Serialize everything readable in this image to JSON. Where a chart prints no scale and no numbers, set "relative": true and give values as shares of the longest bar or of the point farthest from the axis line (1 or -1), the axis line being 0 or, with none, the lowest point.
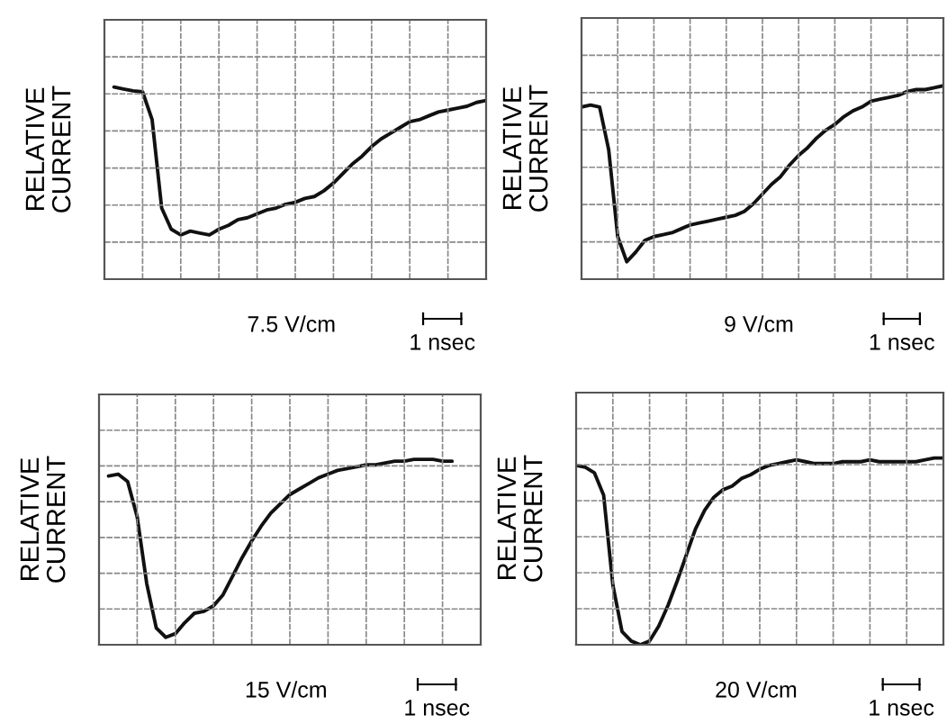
{
  "chart_data": [
    {
      "type": "line",
      "relative": true,
      "grid": true,
      "legend": false,
      "ylabel": "RELATIVE\nCURRENT",
      "xlabel": "7.5 V/cm",
      "annotations": [
        "1 nsec"
      ],
      "categories": [
        null,
        null,
        null,
        null,
        null,
        null,
        null,
        null,
        null,
        null,
        null,
        null,
        null,
        null,
        null,
        null,
        null,
        null,
        null,
        null,
        null,
        null,
        null,
        null,
        null,
        null,
        null,
        null,
        null,
        null,
        null,
        null,
        null,
        null,
        null,
        null,
        null,
        null,
        null,
        null,
        null
      ],
      "series": [
        {
          "color": "#111111",
          "values": [
            null,
            1.0,
            0.99,
            0.98,
            0.975,
            0.83,
            0.37,
            0.26,
            0.23,
            0.25,
            0.24,
            0.23,
            0.26,
            0.28,
            0.31,
            0.32,
            0.34,
            0.36,
            0.37,
            0.39,
            0.4,
            0.42,
            0.43,
            0.46,
            0.5,
            0.55,
            0.6,
            0.64,
            0.69,
            0.73,
            0.76,
            0.79,
            0.82,
            0.83,
            0.85,
            0.87,
            0.88,
            0.89,
            0.9,
            0.92,
            0.93
          ]
        }
      ]
    },
    {
      "type": "line",
      "relative": true,
      "grid": true,
      "legend": false,
      "ylabel": "RELATIVE\nCURRENT",
      "xlabel": "9 V/cm",
      "annotations": [
        "1 nsec"
      ],
      "categories": [
        null,
        null,
        null,
        null,
        null,
        null,
        null,
        null,
        null,
        null,
        null,
        null,
        null,
        null,
        null,
        null,
        null,
        null,
        null,
        null,
        null,
        null,
        null,
        null,
        null,
        null,
        null,
        null,
        null,
        null,
        null,
        null,
        null,
        null,
        null,
        null,
        null,
        null,
        null,
        null,
        null
      ],
      "series": [
        {
          "color": "#111111",
          "values": [
            0.89,
            0.9,
            0.89,
            0.67,
            0.22,
            0.09,
            0.14,
            0.2,
            0.22,
            0.23,
            0.24,
            0.26,
            0.28,
            0.29,
            0.3,
            0.31,
            0.32,
            0.33,
            0.35,
            0.39,
            0.44,
            0.49,
            0.53,
            0.59,
            0.64,
            0.68,
            0.73,
            0.77,
            0.8,
            0.84,
            0.87,
            0.89,
            0.92,
            0.93,
            0.94,
            0.95,
            0.97,
            0.98,
            0.98,
            0.99,
            1.0
          ]
        }
      ]
    },
    {
      "type": "line",
      "relative": true,
      "grid": true,
      "legend": false,
      "ylabel": "RELATIVE\nCURRENT",
      "xlabel": "15 V/cm",
      "annotations": [
        "1 nsec"
      ],
      "categories": [
        null,
        null,
        null,
        null,
        null,
        null,
        null,
        null,
        null,
        null,
        null,
        null,
        null,
        null,
        null,
        null,
        null,
        null,
        null,
        null,
        null,
        null,
        null,
        null,
        null,
        null,
        null,
        null,
        null,
        null,
        null,
        null,
        null,
        null,
        null,
        null,
        null,
        null,
        null,
        null,
        null
      ],
      "series": [
        {
          "color": "#111111",
          "values": [
            null,
            0.91,
            0.92,
            0.88,
            0.69,
            0.33,
            0.09,
            0.04,
            0.06,
            0.12,
            0.17,
            0.18,
            0.21,
            0.27,
            0.37,
            0.47,
            0.56,
            0.64,
            0.71,
            0.76,
            0.81,
            0.84,
            0.87,
            0.9,
            0.92,
            0.94,
            0.95,
            0.96,
            0.97,
            0.97,
            0.98,
            0.99,
            0.99,
            1.0,
            1.0,
            1.0,
            0.99,
            0.99,
            null,
            null,
            null
          ]
        }
      ]
    },
    {
      "type": "line",
      "relative": true,
      "grid": true,
      "legend": false,
      "ylabel": "RELATIVE\nCURRENT",
      "xlabel": "20 V/cm",
      "annotations": [
        "1 nsec"
      ],
      "categories": [
        null,
        null,
        null,
        null,
        null,
        null,
        null,
        null,
        null,
        null,
        null,
        null,
        null,
        null,
        null,
        null,
        null,
        null,
        null,
        null,
        null,
        null,
        null,
        null,
        null,
        null,
        null,
        null,
        null,
        null,
        null,
        null,
        null,
        null,
        null,
        null,
        null,
        null,
        null,
        null,
        null
      ],
      "series": [
        {
          "color": "#111111",
          "values": [
            0.96,
            0.95,
            0.92,
            0.8,
            0.32,
            0.07,
            0.02,
            0.0,
            0.02,
            0.1,
            0.21,
            0.34,
            0.48,
            0.62,
            0.72,
            0.79,
            0.83,
            0.85,
            0.89,
            0.91,
            0.94,
            0.96,
            0.97,
            0.98,
            0.99,
            0.98,
            0.97,
            0.97,
            0.97,
            0.98,
            0.98,
            0.98,
            0.99,
            0.98,
            0.98,
            0.98,
            0.98,
            0.98,
            0.99,
            1.0,
            1.0
          ]
        }
      ]
    }
  ]
}
